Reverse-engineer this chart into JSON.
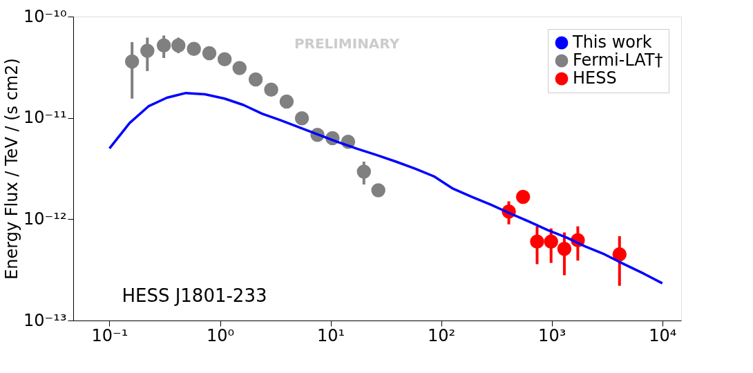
{
  "chart_data": {
    "type": "scatter",
    "ylabel": "Energy Flux / TeV / (s cm2)",
    "log": "xy",
    "xlim": [
      0.047,
      14800
    ],
    "ylim": [
      1e-13,
      1e-10
    ],
    "xticks": [
      {
        "value": 0.1,
        "label": "10⁻¹"
      },
      {
        "value": 1,
        "label": "10⁰"
      },
      {
        "value": 10,
        "label": "10¹"
      },
      {
        "value": 100,
        "label": "10²"
      },
      {
        "value": 1000,
        "label": "10³"
      },
      {
        "value": 10000,
        "label": "10⁴"
      }
    ],
    "yticks": [
      {
        "value": 1e-13,
        "label": "10⁻¹³"
      },
      {
        "value": 1e-12,
        "label": "10⁻¹²"
      },
      {
        "value": 1e-11,
        "label": "10⁻¹¹"
      },
      {
        "value": 1e-10,
        "label": "10⁻¹⁰"
      }
    ],
    "grid": false,
    "legend": "top right",
    "annotations": [
      "PRELIMINARY",
      "HESS J1801-233"
    ],
    "series": [
      {
        "name": "This work",
        "type": "line",
        "color": "#0000ff",
        "marker": "none",
        "line_style": "solid",
        "x": [
          0.1,
          0.152,
          0.225,
          0.33,
          0.49,
          0.73,
          1.1,
          1.63,
          2.4,
          3.5,
          5.3,
          7.8,
          11.5,
          17,
          26,
          39,
          58,
          86,
          128,
          190,
          282,
          420,
          620,
          920,
          1360,
          2000,
          3000,
          4500,
          6800,
          10000
        ],
        "values": [
          5e-12,
          8.9e-12,
          1.3e-11,
          1.58e-11,
          1.76e-11,
          1.71e-11,
          1.55e-11,
          1.34e-11,
          1.1e-11,
          9.5e-12,
          8e-12,
          6.8e-12,
          5.8e-12,
          5e-12,
          4.3e-12,
          3.7e-12,
          3.16e-12,
          2.65e-12,
          2e-12,
          1.66e-12,
          1.39e-12,
          1.14e-12,
          9.5e-13,
          7.8e-13,
          6.6e-13,
          5.4e-13,
          4.5e-13,
          3.6e-13,
          2.9e-13,
          2.33e-13
        ]
      },
      {
        "name": "Fermi-LAT†",
        "color": "#808080",
        "marker": "circle",
        "x": [
          0.16,
          0.22,
          0.31,
          0.42,
          0.58,
          0.8,
          1.1,
          1.5,
          2.1,
          2.9,
          4.0,
          5.5,
          7.6,
          10.4,
          14.4,
          20,
          27
        ],
        "values": [
          3.6e-11,
          4.6e-11,
          5.2e-11,
          5.2e-11,
          4.8e-11,
          4.35e-11,
          3.8e-11,
          3.1e-11,
          2.4e-11,
          1.9e-11,
          1.45e-11,
          9.9e-12,
          6.8e-12,
          6.3e-12,
          5.8e-12,
          2.95e-12,
          1.93e-12
        ],
        "errors": [
          [
            1.55e-11,
            5.6e-11
          ],
          [
            2.9e-11,
            6.2e-11
          ],
          [
            3.9e-11,
            6.5e-11
          ],
          [
            4.35e-11,
            6.2e-11
          ],
          null,
          null,
          null,
          null,
          null,
          null,
          null,
          null,
          null,
          null,
          null,
          [
            2.2e-12,
            3.7e-12
          ],
          null
        ]
      },
      {
        "name": "HESS",
        "color": "#ff0000",
        "marker": "circle",
        "x": [
          409,
          550,
          737,
          986,
          1300,
          1720,
          4100
        ],
        "values": [
          1.19e-12,
          1.66e-12,
          6e-13,
          6e-13,
          5.1e-13,
          6.2e-13,
          4.5e-13
        ],
        "errors": [
          [
            8.9e-13,
            1.5e-12
          ],
          [
            1.45e-12,
            1.87e-12
          ],
          [
            3.6e-13,
            8.5e-13
          ],
          [
            3.7e-13,
            8.1e-13
          ],
          [
            2.8e-13,
            7.4e-13
          ],
          [
            3.9e-13,
            8.5e-13
          ],
          [
            2.2e-13,
            6.8e-13
          ]
        ]
      }
    ]
  }
}
